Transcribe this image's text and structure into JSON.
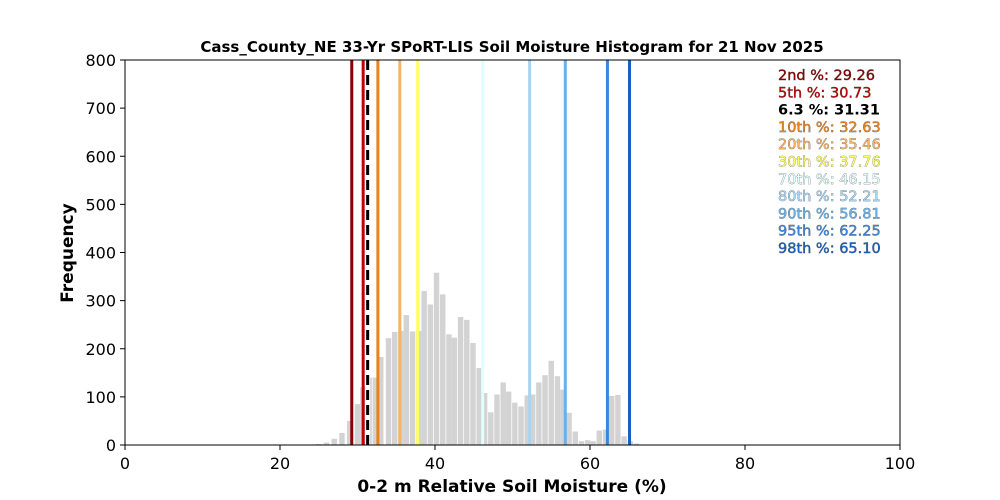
{
  "chart_data": {
    "type": "bar",
    "title": "Cass_County_NE 33-Yr SPoRT-LIS Soil Moisture Histogram for 21 Nov 2025",
    "xlabel": "0-2 m Relative Soil Moisture (%)",
    "ylabel": "Frequency",
    "xlim": [
      0,
      100
    ],
    "ylim": [
      0,
      800
    ],
    "xticks": [
      0,
      20,
      40,
      60,
      80,
      100
    ],
    "yticks": [
      0,
      100,
      200,
      300,
      400,
      500,
      600,
      700,
      800
    ],
    "grid": false,
    "bar_color": "#d3d3d3",
    "bar_width": 0.7,
    "bins": [
      {
        "x": 25.0,
        "y": 2
      },
      {
        "x": 26.0,
        "y": 5
      },
      {
        "x": 27.0,
        "y": 13
      },
      {
        "x": 28.0,
        "y": 25
      },
      {
        "x": 29.0,
        "y": 50
      },
      {
        "x": 30.0,
        "y": 85
      },
      {
        "x": 30.7,
        "y": 120
      },
      {
        "x": 31.5,
        "y": 140
      },
      {
        "x": 32.3,
        "y": 140
      },
      {
        "x": 33.0,
        "y": 183
      },
      {
        "x": 34.0,
        "y": 222
      },
      {
        "x": 34.8,
        "y": 235
      },
      {
        "x": 35.6,
        "y": 237
      },
      {
        "x": 36.3,
        "y": 270
      },
      {
        "x": 37.1,
        "y": 236
      },
      {
        "x": 37.9,
        "y": 237
      },
      {
        "x": 38.6,
        "y": 320
      },
      {
        "x": 39.4,
        "y": 292
      },
      {
        "x": 40.2,
        "y": 358
      },
      {
        "x": 41.0,
        "y": 313
      },
      {
        "x": 41.8,
        "y": 230
      },
      {
        "x": 42.5,
        "y": 223
      },
      {
        "x": 43.3,
        "y": 266
      },
      {
        "x": 44.1,
        "y": 260
      },
      {
        "x": 44.9,
        "y": 212
      },
      {
        "x": 45.7,
        "y": 160
      },
      {
        "x": 46.4,
        "y": 108
      },
      {
        "x": 47.2,
        "y": 68
      },
      {
        "x": 48.0,
        "y": 105
      },
      {
        "x": 48.8,
        "y": 130
      },
      {
        "x": 49.5,
        "y": 111
      },
      {
        "x": 50.3,
        "y": 88
      },
      {
        "x": 51.1,
        "y": 80
      },
      {
        "x": 51.9,
        "y": 103
      },
      {
        "x": 52.6,
        "y": 105
      },
      {
        "x": 53.4,
        "y": 130
      },
      {
        "x": 54.2,
        "y": 145
      },
      {
        "x": 55.0,
        "y": 175
      },
      {
        "x": 55.8,
        "y": 143
      },
      {
        "x": 56.5,
        "y": 115
      },
      {
        "x": 57.3,
        "y": 67
      },
      {
        "x": 58.1,
        "y": 28
      },
      {
        "x": 58.9,
        "y": 8
      },
      {
        "x": 59.7,
        "y": 10
      },
      {
        "x": 60.4,
        "y": 8
      },
      {
        "x": 61.2,
        "y": 30
      },
      {
        "x": 62.0,
        "y": 32
      },
      {
        "x": 62.8,
        "y": 102
      },
      {
        "x": 63.6,
        "y": 104
      },
      {
        "x": 64.4,
        "y": 18
      },
      {
        "x": 65.2,
        "y": 8
      },
      {
        "x": 66.0,
        "y": 3
      },
      {
        "x": 70.0,
        "y": 1
      }
    ],
    "percentile_lines": [
      {
        "label": "2nd %",
        "value": "29.26",
        "x": 29.26,
        "color": "#8b0000",
        "style": "solid"
      },
      {
        "label": "5th %",
        "value": "30.73",
        "x": 30.73,
        "color": "#c00000",
        "style": "solid"
      },
      {
        "label": "6.3 %",
        "value": "31.31",
        "x": 31.31,
        "color": "#000000",
        "style": "dashed"
      },
      {
        "label": "10th %",
        "value": "32.63",
        "x": 32.63,
        "color": "#e8821e",
        "style": "solid"
      },
      {
        "label": "20th %",
        "value": "35.46",
        "x": 35.46,
        "color": "#f5b36a",
        "style": "solid"
      },
      {
        "label": "30th %",
        "value": "37.76",
        "x": 37.76,
        "color": "#ffff66",
        "style": "solid"
      },
      {
        "label": "70th %",
        "value": "46.15",
        "x": 46.15,
        "color": "#e0ffff",
        "style": "solid"
      },
      {
        "label": "80th %",
        "value": "52.21",
        "x": 52.21,
        "color": "#a5d5f2",
        "style": "solid"
      },
      {
        "label": "90th %",
        "value": "56.81",
        "x": 56.81,
        "color": "#6ab0e8",
        "style": "solid"
      },
      {
        "label": "95th %",
        "value": "62.25",
        "x": 62.25,
        "color": "#3a86de",
        "style": "solid"
      },
      {
        "label": "98th %",
        "value": "65.10",
        "x": 65.1,
        "color": "#1a5fc0",
        "style": "solid"
      }
    ],
    "legend_placement": "top-right"
  }
}
